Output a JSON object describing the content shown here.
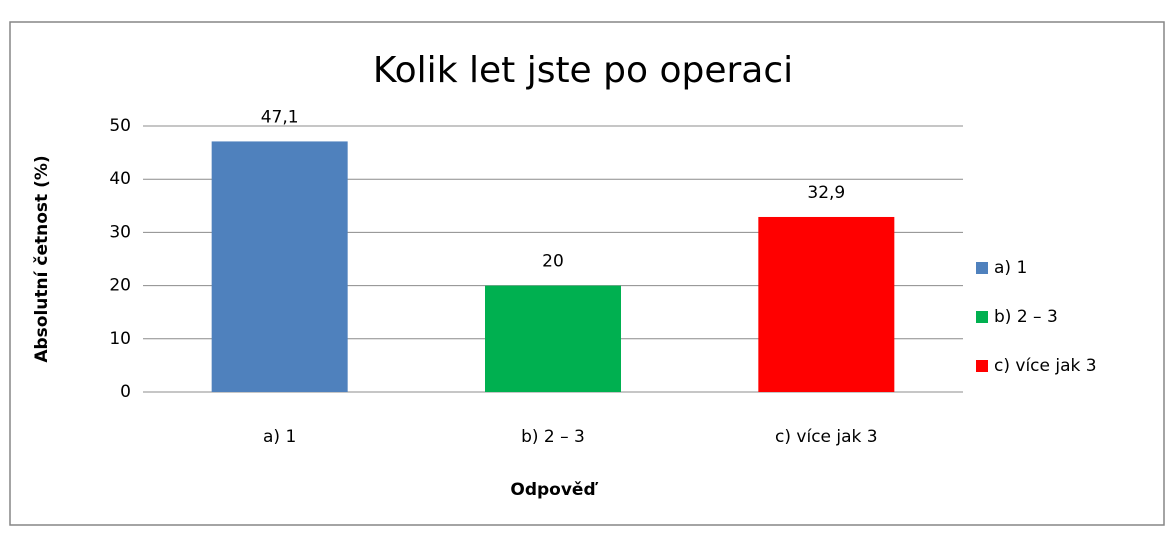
{
  "chart_data": {
    "type": "bar",
    "title": "Kolik let jste po operaci",
    "ylabel": "Absolutní četnost (%)",
    "xlabel": "Odpověď",
    "categories": [
      "a) 1",
      "b) 2 – 3",
      "c) více jak 3"
    ],
    "values": [
      47.1,
      20,
      32.9
    ],
    "value_labels": [
      "47,1",
      "20",
      "32,9"
    ],
    "colors": [
      "#4f81bd",
      "#00b050",
      "#ff0000"
    ],
    "ylim": [
      0,
      50
    ],
    "yticks": [
      0,
      10,
      20,
      30,
      40,
      50
    ],
    "grid": true,
    "legend": "right"
  }
}
